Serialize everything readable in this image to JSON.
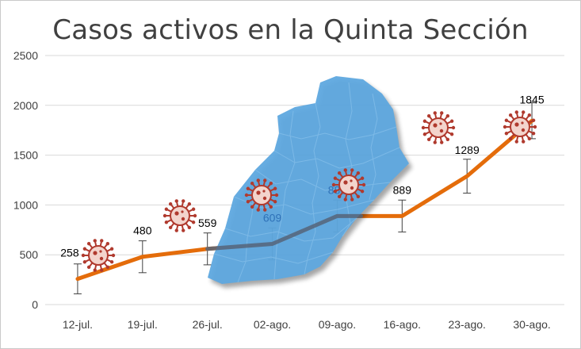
{
  "chart_data": {
    "type": "line",
    "title": "Casos activos en la Quinta Sección",
    "xlabel": "",
    "ylabel": "",
    "categories": [
      "12-jul.",
      "19-jul.",
      "26-jul.",
      "02-ago.",
      "09-ago.",
      "16-ago.",
      "23-ago.",
      "30-ago."
    ],
    "ylim": [
      0,
      2500
    ],
    "yticks": [
      0,
      500,
      1000,
      1500,
      2000,
      2500
    ],
    "grid": true,
    "legend": "none",
    "series": [
      {
        "values": [
          258,
          480,
          559,
          609,
          889,
          889,
          1289,
          1845
        ],
        "labels": [
          "258",
          "480",
          "559",
          "609",
          "889",
          "889",
          "1289",
          "1845"
        ],
        "error": [
          150,
          160,
          160,
          160,
          160,
          160,
          170,
          180
        ],
        "color": "#e46c0a"
      }
    ],
    "decorations": {
      "map_color": "#5ea8df",
      "virus_icon": "coronavirus-icon",
      "virus_color": "#b03a2e"
    }
  }
}
